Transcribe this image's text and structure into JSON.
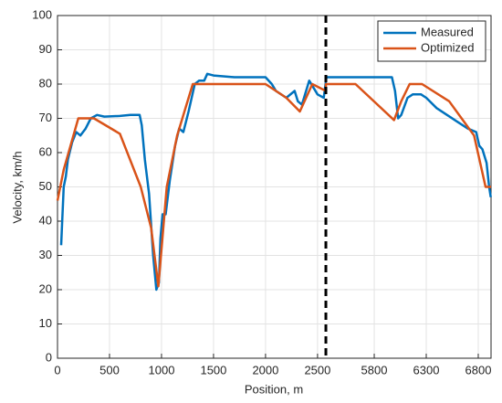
{
  "chart_data": {
    "type": "line",
    "xlabel": "Position, m",
    "ylabel": "Velocity, km/h",
    "xlim": [
      0,
      6923
    ],
    "ylim": [
      0,
      100
    ],
    "x_break": [
      2580,
      5335
    ],
    "xticks": [
      0,
      500,
      1000,
      1500,
      2000,
      2500,
      5800,
      6300,
      6800
    ],
    "yticks": [
      0,
      10,
      20,
      30,
      40,
      50,
      60,
      70,
      80,
      90,
      100
    ],
    "grid": true,
    "legend": "top-right",
    "series": [
      {
        "name": "Measured",
        "color": "#0072BD",
        "x": [
          35,
          60,
          80,
          100,
          140,
          180,
          220,
          270,
          320,
          380,
          450,
          600,
          700,
          790,
          810,
          840,
          880,
          920,
          950,
          975,
          990,
          1010,
          1040,
          1080,
          1130,
          1170,
          1210,
          1260,
          1320,
          1360,
          1410,
          1440,
          1500,
          1700,
          2000,
          2060,
          2100,
          2200,
          2280,
          2310,
          2350,
          2420,
          2460,
          2500,
          2560,
          5340,
          5700,
          5970,
          6000,
          6030,
          6060,
          6120,
          6170,
          6250,
          6300,
          6400,
          6500,
          6600,
          6700,
          6780,
          6810,
          6840,
          6880,
          6905,
          6920
        ],
        "values": [
          33,
          50,
          53,
          58,
          63,
          66,
          65,
          67,
          70,
          71,
          70.5,
          70.7,
          71,
          71,
          68,
          58,
          48,
          30,
          20,
          22,
          35,
          42,
          42,
          52,
          62,
          67,
          66,
          72,
          80,
          81,
          81,
          83,
          82.5,
          82,
          82,
          80,
          78,
          76,
          78,
          75,
          74,
          81,
          79,
          77,
          76,
          82,
          82,
          82,
          78,
          70,
          71,
          76,
          77,
          77,
          76,
          73,
          71,
          69,
          67,
          66,
          62,
          61,
          57,
          50,
          47
        ]
      },
      {
        "name": "Optimized",
        "color": "#D95319",
        "x": [
          0,
          60,
          200,
          350,
          600,
          800,
          900,
          970,
          1000,
          1050,
          1150,
          1300,
          2000,
          2100,
          2200,
          2330,
          2450,
          2580,
          5335,
          5620,
          5990,
          6060,
          6140,
          6260,
          6520,
          6760,
          6870,
          6923
        ],
        "values": [
          46,
          55,
          70,
          70,
          65.5,
          50,
          38,
          21,
          32,
          50,
          65,
          80,
          80,
          78,
          76,
          72,
          80,
          78,
          80,
          80,
          69.5,
          75,
          80,
          80,
          75,
          65,
          50,
          50
        ]
      }
    ]
  }
}
